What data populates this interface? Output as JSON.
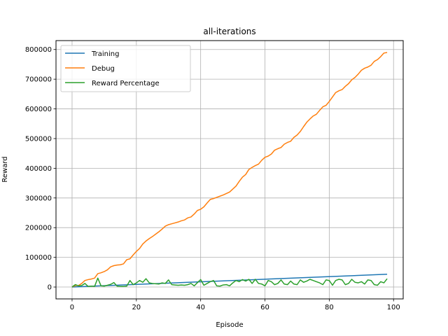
{
  "chart_data": {
    "type": "line",
    "title": "all-iterations",
    "xlabel": "Episode",
    "ylabel": "Reward",
    "xlim": [
      -5,
      103
    ],
    "ylim": [
      -40000,
      830000
    ],
    "xticks": [
      0,
      20,
      40,
      60,
      80,
      100
    ],
    "yticks": [
      0,
      100000,
      200000,
      300000,
      400000,
      500000,
      600000,
      700000,
      800000
    ],
    "grid": true,
    "legend_position": "top-left",
    "series": [
      {
        "name": "Training",
        "color": "#1f77b4",
        "x": [
          0,
          98
        ],
        "y": [
          0,
          43000
        ]
      },
      {
        "name": "Debug",
        "color": "#ff7f0e",
        "x": [
          0,
          1,
          2,
          3,
          4,
          5,
          6,
          7,
          8,
          9,
          10,
          11,
          12,
          13,
          14,
          15,
          16,
          17,
          18,
          19,
          20,
          21,
          22,
          23,
          24,
          25,
          26,
          27,
          28,
          29,
          30,
          31,
          32,
          33,
          34,
          35,
          36,
          37,
          38,
          39,
          40,
          41,
          42,
          43,
          44,
          45,
          46,
          47,
          48,
          49,
          50,
          51,
          52,
          53,
          54,
          55,
          56,
          57,
          58,
          59,
          60,
          61,
          62,
          63,
          64,
          65,
          66,
          67,
          68,
          69,
          70,
          71,
          72,
          73,
          74,
          75,
          76,
          77,
          78,
          79,
          80,
          81,
          82,
          83,
          84,
          85,
          86,
          87,
          88,
          89,
          90,
          91,
          92,
          93,
          94,
          95,
          96,
          97,
          98
        ],
        "y": [
          0,
          5000,
          5000,
          12000,
          22000,
          25000,
          27000,
          30000,
          45000,
          48000,
          52000,
          58000,
          68000,
          72000,
          74000,
          75000,
          78000,
          92000,
          95000,
          108000,
          120000,
          130000,
          145000,
          155000,
          163000,
          170000,
          178000,
          186000,
          195000,
          205000,
          210000,
          213000,
          216000,
          219000,
          223000,
          226000,
          233000,
          236000,
          246000,
          258000,
          262000,
          270000,
          283000,
          295000,
          298000,
          302000,
          306000,
          310000,
          315000,
          320000,
          330000,
          340000,
          356000,
          370000,
          379000,
          396000,
          403000,
          409000,
          414000,
          427000,
          437000,
          441000,
          448000,
          461000,
          466000,
          470000,
          481000,
          487000,
          491000,
          504000,
          512000,
          524000,
          540000,
          555000,
          566000,
          576000,
          582000,
          595000,
          607000,
          612000,
          625000,
          640000,
          655000,
          661000,
          665000,
          676000,
          685000,
          698000,
          706000,
          717000,
          730000,
          737000,
          741000,
          747000,
          760000,
          766000,
          776000,
          788000,
          790000
        ]
      },
      {
        "name": "Reward Percentage",
        "color": "#2ca02c",
        "x": [
          0,
          1,
          2,
          3,
          4,
          5,
          6,
          7,
          8,
          9,
          10,
          11,
          12,
          13,
          14,
          15,
          16,
          17,
          18,
          19,
          20,
          21,
          22,
          23,
          24,
          25,
          26,
          27,
          28,
          29,
          30,
          31,
          32,
          33,
          34,
          35,
          36,
          37,
          38,
          39,
          40,
          41,
          42,
          43,
          44,
          45,
          46,
          47,
          48,
          49,
          50,
          51,
          52,
          53,
          54,
          55,
          56,
          57,
          58,
          59,
          60,
          61,
          62,
          63,
          64,
          65,
          66,
          67,
          68,
          69,
          70,
          71,
          72,
          73,
          74,
          75,
          76,
          77,
          78,
          79,
          80,
          81,
          82,
          83,
          84,
          85,
          86,
          87,
          88,
          89,
          90,
          91,
          92,
          93,
          94,
          95,
          96,
          97,
          98
        ],
        "y": [
          0,
          8000,
          4000,
          5000,
          12000,
          2000,
          3000,
          2000,
          30000,
          4000,
          3000,
          6000,
          9000,
          15000,
          3000,
          2000,
          2000,
          3000,
          22000,
          8000,
          14000,
          22000,
          16000,
          28000,
          14000,
          12000,
          11000,
          10000,
          14000,
          12000,
          24000,
          8000,
          7000,
          6000,
          7000,
          6000,
          8000,
          12000,
          4000,
          15000,
          25000,
          6000,
          12000,
          18000,
          22000,
          4000,
          3000,
          7000,
          8000,
          4000,
          14000,
          22000,
          18000,
          25000,
          20000,
          26000,
          12000,
          26000,
          12000,
          10000,
          4000,
          22000,
          18000,
          8000,
          12000,
          24000,
          10000,
          8000,
          20000,
          10000,
          8000,
          24000,
          16000,
          20000,
          26000,
          22000,
          18000,
          14000,
          8000,
          24000,
          22000,
          6000,
          22000,
          26000,
          24000,
          8000,
          12000,
          26000,
          16000,
          14000,
          18000,
          10000,
          24000,
          22000,
          8000,
          6000,
          18000,
          14000,
          28000
        ]
      }
    ]
  }
}
